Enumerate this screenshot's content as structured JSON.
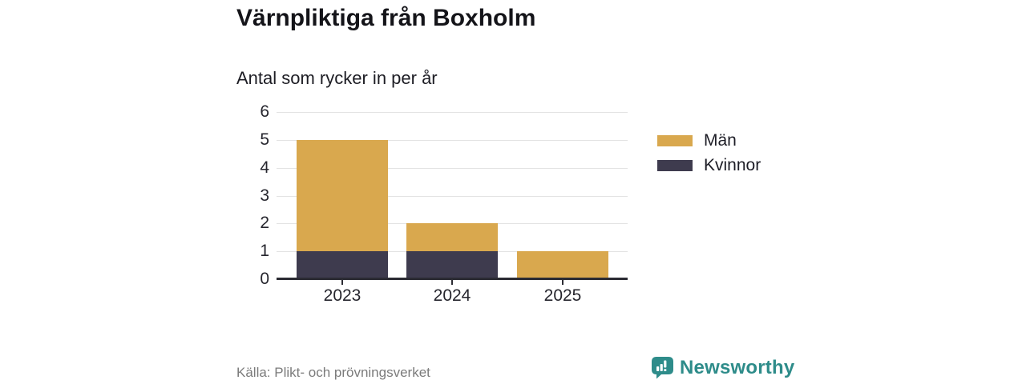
{
  "header": {
    "title": "Värnpliktiga från Boxholm",
    "subtitle": "Antal som rycker in per år"
  },
  "chart_data": {
    "type": "bar",
    "stacked": true,
    "title": "Värnpliktiga från Boxholm",
    "subtitle": "Antal som rycker in per år",
    "categories": [
      "2023",
      "2024",
      "2025"
    ],
    "series": [
      {
        "name": "Män",
        "color": "#D9A84E",
        "values": [
          4,
          1,
          1
        ]
      },
      {
        "name": "Kvinnor",
        "color": "#3E3B4E",
        "values": [
          1,
          1,
          0
        ]
      }
    ],
    "stack_order_bottom_to_top": [
      "Kvinnor",
      "Män"
    ],
    "totals": [
      5,
      2,
      1
    ],
    "ylim": [
      0,
      6
    ],
    "yticks": [
      0,
      1,
      2,
      3,
      4,
      5,
      6
    ],
    "xlabel": "",
    "ylabel": "",
    "grid": "horizontal",
    "legend_position": "right"
  },
  "footer": {
    "source": "Källa: Plikt- och prövningsverket",
    "brand": "Newsworthy"
  },
  "colors": {
    "men": "#D9A84E",
    "women": "#3E3B4E",
    "brand_teal": "#2E8C8A",
    "axis": "#2B2B33",
    "grid": "#E3E3E3"
  },
  "icons": {
    "brand_icon": "newsworthy-speech-bubble-bar-chart-icon"
  }
}
